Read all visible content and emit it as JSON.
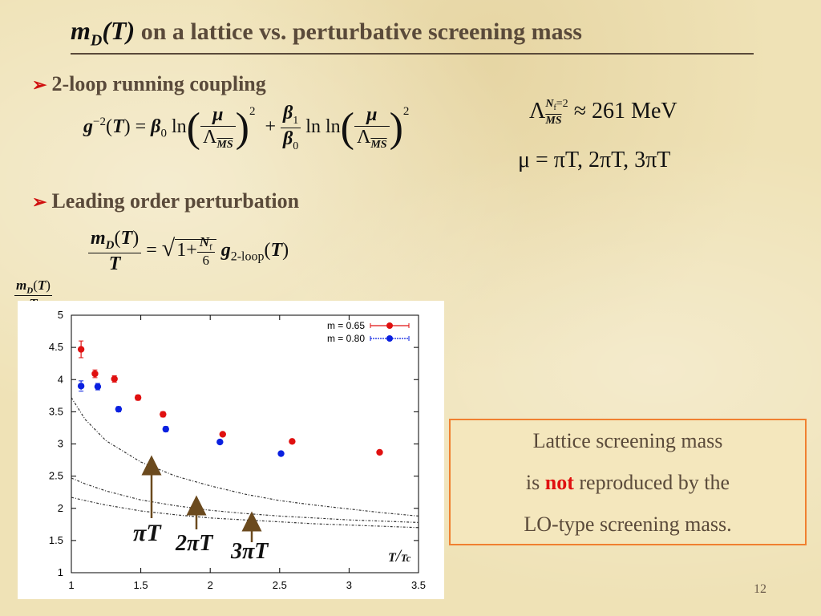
{
  "title": {
    "math_m": "m",
    "math_sub": "D",
    "math_arg": "(T)",
    "rest": " on a lattice vs. perturbative screening mass"
  },
  "bullets": {
    "b1": "2-loop running coupling",
    "b2": "Leading order perturbation"
  },
  "params": {
    "lambda_value": "≈ 261 MeV",
    "mu_line": "μ = πT,  2πT,  3πT"
  },
  "side_label": {
    "num": "m_D(T)",
    "den": "T"
  },
  "callout": {
    "line1": "Lattice screening mass",
    "line2_pre": "is",
    "line2_red": "not",
    "line2_post": "reproduced by the",
    "line3": "LO-type screening mass."
  },
  "page_number": "12",
  "annotations": {
    "a1": "πT",
    "a2": "2πT",
    "a3": "3πT",
    "xlabel_num": "T",
    "xlabel_den": "Tc"
  },
  "colors": {
    "red": "#e01010",
    "blue": "#0a20e0",
    "arrow": "#6b4a1e",
    "callout_border": "#f08030",
    "title": "#5a4a3a"
  },
  "chart_data": {
    "type": "scatter",
    "xlim": [
      1,
      3.5
    ],
    "ylim": [
      1,
      5
    ],
    "xticks": [
      "1",
      "1.5",
      "2",
      "2.5",
      "3",
      "3.5"
    ],
    "yticks": [
      "1",
      "1.5",
      "2",
      "2.5",
      "3",
      "3.5",
      "4",
      "4.5",
      "5"
    ],
    "xlabel": "T/Tc",
    "ylabel": "m_D(T)/T",
    "grid": false,
    "legend_position": "top-right",
    "series": [
      {
        "name": "m = 0.65",
        "color": "#e01010",
        "points": [
          {
            "x": 1.07,
            "y": 4.47,
            "err": 0.13
          },
          {
            "x": 1.17,
            "y": 4.09,
            "err": 0.06
          },
          {
            "x": 1.31,
            "y": 4.01,
            "err": 0.05
          },
          {
            "x": 1.48,
            "y": 3.72,
            "err": 0.04
          },
          {
            "x": 1.66,
            "y": 3.46,
            "err": 0.04
          },
          {
            "x": 2.09,
            "y": 3.15,
            "err": 0.02
          },
          {
            "x": 2.59,
            "y": 3.04,
            "err": 0.02
          },
          {
            "x": 3.22,
            "y": 2.87,
            "err": 0.02
          }
        ]
      },
      {
        "name": "m = 0.80",
        "color": "#0a20e0",
        "points": [
          {
            "x": 1.07,
            "y": 3.9,
            "err": 0.08
          },
          {
            "x": 1.19,
            "y": 3.89,
            "err": 0.05
          },
          {
            "x": 1.34,
            "y": 3.54,
            "err": 0.04
          },
          {
            "x": 1.68,
            "y": 3.23,
            "err": 0.04
          },
          {
            "x": 2.07,
            "y": 3.03,
            "err": 0.02
          },
          {
            "x": 2.51,
            "y": 2.85,
            "err": 0.02
          }
        ]
      }
    ],
    "curves": [
      {
        "label": "πT",
        "points": [
          [
            1.0,
            3.72
          ],
          [
            1.1,
            3.38
          ],
          [
            1.25,
            3.05
          ],
          [
            1.5,
            2.72
          ],
          [
            1.75,
            2.5
          ],
          [
            2.0,
            2.35
          ],
          [
            2.25,
            2.22
          ],
          [
            2.5,
            2.12
          ],
          [
            2.75,
            2.05
          ],
          [
            3.0,
            1.99
          ],
          [
            3.25,
            1.93
          ],
          [
            3.5,
            1.88
          ]
        ]
      },
      {
        "label": "2πT",
        "points": [
          [
            1.0,
            2.47
          ],
          [
            1.1,
            2.38
          ],
          [
            1.25,
            2.27
          ],
          [
            1.5,
            2.13
          ],
          [
            1.75,
            2.04
          ],
          [
            2.0,
            1.97
          ],
          [
            2.25,
            1.92
          ],
          [
            2.5,
            1.88
          ],
          [
            2.75,
            1.85
          ],
          [
            3.0,
            1.82
          ],
          [
            3.25,
            1.8
          ],
          [
            3.5,
            1.78
          ]
        ]
      },
      {
        "label": "3πT",
        "points": [
          [
            1.0,
            2.17
          ],
          [
            1.1,
            2.12
          ],
          [
            1.25,
            2.05
          ],
          [
            1.5,
            1.96
          ],
          [
            1.75,
            1.9
          ],
          [
            2.0,
            1.85
          ],
          [
            2.25,
            1.82
          ],
          [
            2.5,
            1.79
          ],
          [
            2.75,
            1.76
          ],
          [
            3.0,
            1.74
          ],
          [
            3.25,
            1.72
          ],
          [
            3.5,
            1.7
          ]
        ]
      }
    ]
  }
}
